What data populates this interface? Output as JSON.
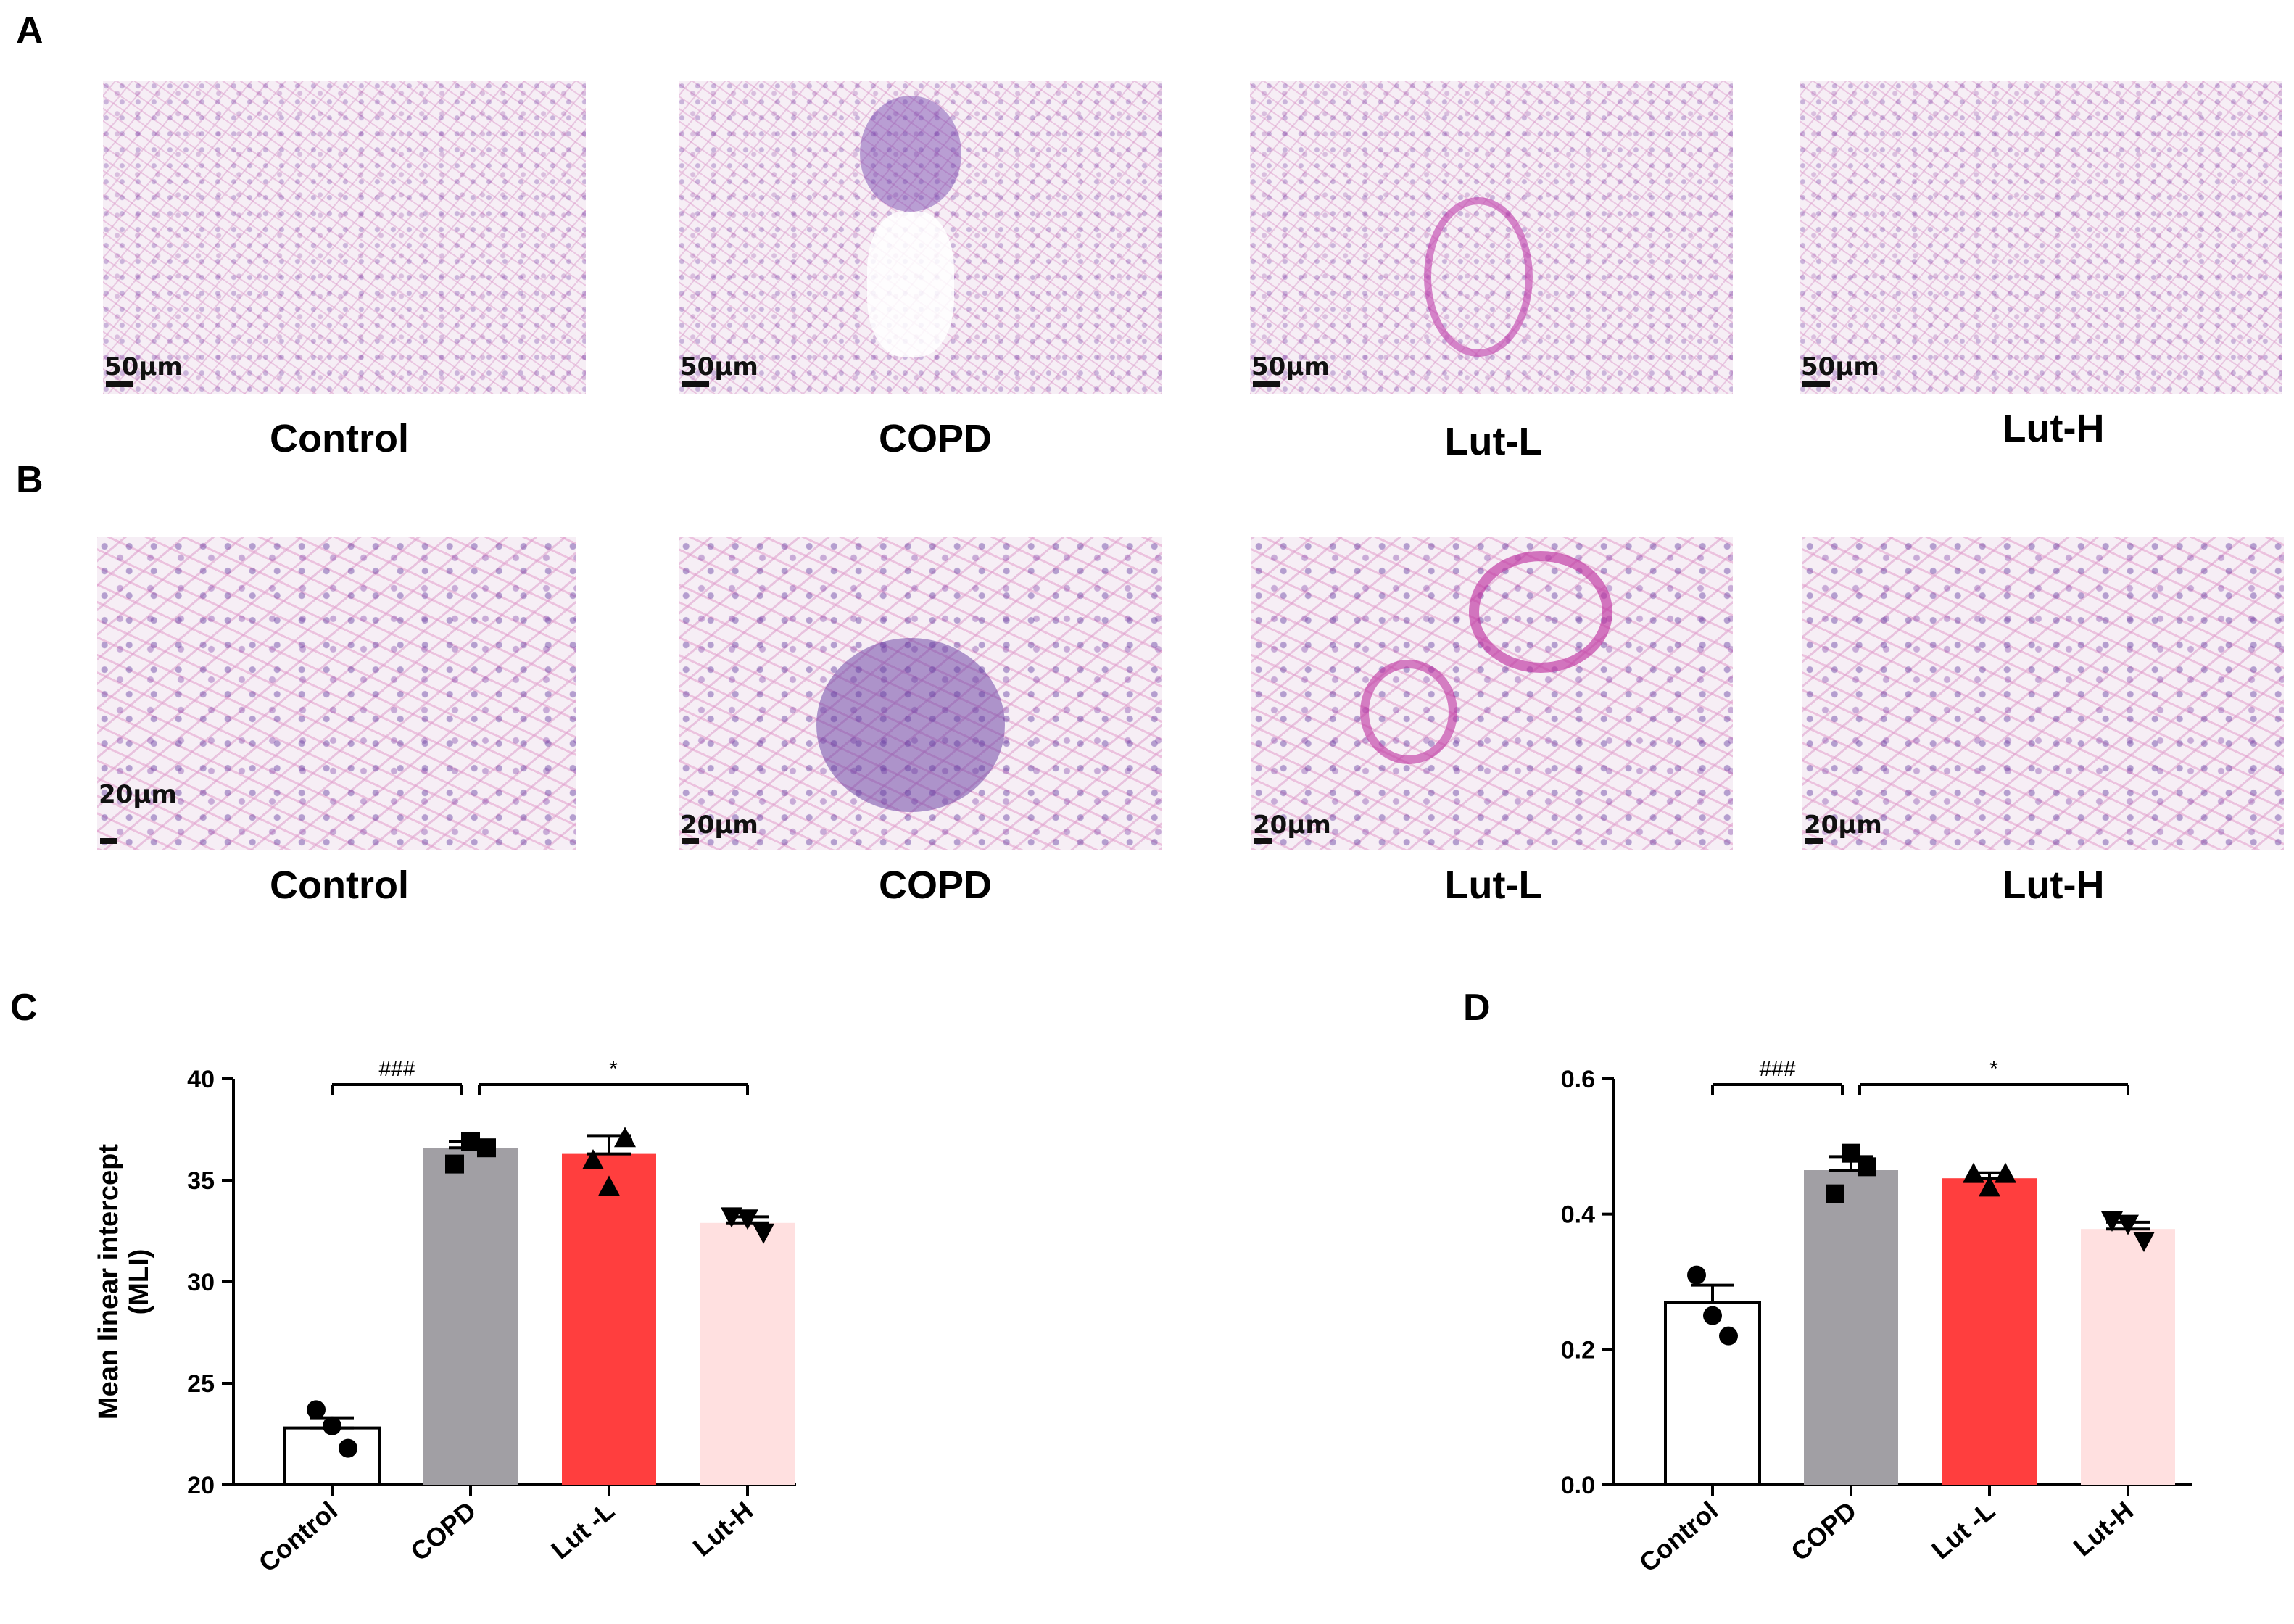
{
  "panels": {
    "A": "A",
    "B": "B",
    "C": "C",
    "D": "D"
  },
  "microscopy": {
    "row_a": {
      "scale_label": "50μm",
      "groups": [
        "Control",
        "COPD",
        "Lut-L",
        "Lut-H"
      ]
    },
    "row_b": {
      "scale_label": "20μm",
      "groups": [
        "Control",
        "COPD",
        "Lut-L",
        "Lut-H"
      ]
    }
  },
  "colors": {
    "control": "#ffffff",
    "copd": "#a19fa4",
    "lut_l": "#ff3e3e",
    "lut_h": "#ffe0e0",
    "tissue_pink": "#e8a8d6",
    "nuclei_purple": "#7a4ab0"
  },
  "chart_data": [
    {
      "panel": "C",
      "type": "bar",
      "categories": [
        "Control",
        "COPD",
        "Lut -L",
        "Lut-H"
      ],
      "values": [
        22.8,
        36.6,
        36.3,
        32.9
      ],
      "errors": [
        0.5,
        0.3,
        0.9,
        0.3
      ],
      "points": [
        [
          23.7,
          22.9,
          21.8
        ],
        [
          36.9,
          36.6,
          35.8
        ],
        [
          37.1,
          36.0,
          34.7
        ],
        [
          33.2,
          33.1,
          32.4
        ]
      ],
      "markers": [
        "circle",
        "square",
        "triangle-up",
        "triangle-down"
      ],
      "ylabel": "Mean linear intercept\n(MLI)",
      "ylim": [
        20,
        40
      ],
      "yticks": [
        "20",
        "25",
        "30",
        "35",
        "40"
      ],
      "significance": [
        {
          "from": 0,
          "to": 1,
          "label": "###"
        },
        {
          "from": 1,
          "to": 3,
          "label": "*"
        }
      ]
    },
    {
      "panel": "D",
      "type": "bar",
      "categories": [
        "Control",
        "COPD",
        "Lut -L",
        "Lut-H"
      ],
      "values": [
        0.27,
        0.465,
        0.453,
        0.378
      ],
      "errors": [
        0.025,
        0.02,
        0.008,
        0.01
      ],
      "points": [
        [
          0.31,
          0.25,
          0.22
        ],
        [
          0.49,
          0.47,
          0.43
        ],
        [
          0.46,
          0.46,
          0.44
        ],
        [
          0.39,
          0.385,
          0.36
        ]
      ],
      "markers": [
        "circle",
        "square",
        "triangle-up",
        "triangle-down"
      ],
      "ylabel": "",
      "ylim": [
        0.0,
        0.6
      ],
      "yticks": [
        "0.0",
        "0.2",
        "0.4",
        "0.6"
      ],
      "significance": [
        {
          "from": 0,
          "to": 1,
          "label": "###"
        },
        {
          "from": 1,
          "to": 3,
          "label": "*"
        }
      ]
    }
  ]
}
